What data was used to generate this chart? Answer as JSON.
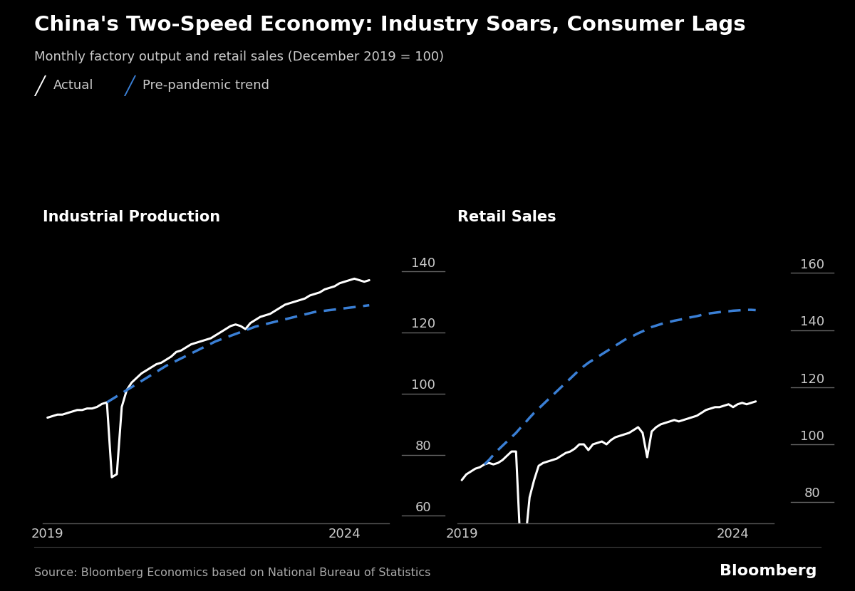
{
  "title": "China's Two-Speed Economy: Industry Soars, Consumer Lags",
  "subtitle": "Monthly factory output and retail sales (December 2019 = 100)",
  "source": "Source: Bloomberg Economics based on National Bureau of Statistics",
  "background_color": "#000000",
  "text_color": "#ffffff",
  "tick_label_color": "#cccccc",
  "actual_color": "#ffffff",
  "trend_color": "#3a7fd5",
  "left_panel_title": "Industrial Production",
  "right_panel_title": "Retail Sales",
  "ip_ylim": [
    58,
    147
  ],
  "ip_yticks": [
    60,
    80,
    100,
    120,
    140
  ],
  "rs_ylim": [
    73,
    168
  ],
  "rs_yticks": [
    80,
    100,
    120,
    140,
    160
  ],
  "xlim_start": 2018.92,
  "xlim_end": 2024.75,
  "xticks": [
    2019,
    2024
  ],
  "ip_actual_x": [
    2019.0,
    2019.083,
    2019.167,
    2019.25,
    2019.333,
    2019.417,
    2019.5,
    2019.583,
    2019.667,
    2019.75,
    2019.833,
    2019.917,
    2020.0,
    2020.083,
    2020.167,
    2020.25,
    2020.333,
    2020.417,
    2020.5,
    2020.583,
    2020.667,
    2020.75,
    2020.833,
    2020.917,
    2021.0,
    2021.083,
    2021.167,
    2021.25,
    2021.333,
    2021.417,
    2021.5,
    2021.583,
    2021.667,
    2021.75,
    2021.833,
    2021.917,
    2022.0,
    2022.083,
    2022.167,
    2022.25,
    2022.333,
    2022.417,
    2022.5,
    2022.583,
    2022.667,
    2022.75,
    2022.833,
    2022.917,
    2023.0,
    2023.083,
    2023.167,
    2023.25,
    2023.333,
    2023.417,
    2023.5,
    2023.583,
    2023.667,
    2023.75,
    2023.833,
    2023.917,
    2024.0,
    2024.083,
    2024.167,
    2024.25,
    2024.333,
    2024.417
  ],
  "ip_actual_y": [
    92.5,
    93.0,
    93.5,
    93.5,
    94.0,
    94.5,
    95.0,
    95.0,
    95.5,
    95.5,
    96.0,
    97.0,
    97.5,
    73.0,
    74.0,
    96.0,
    101.5,
    104.0,
    105.5,
    107.0,
    108.0,
    109.0,
    110.0,
    110.5,
    111.5,
    112.5,
    114.0,
    114.5,
    115.5,
    116.5,
    117.0,
    117.5,
    118.0,
    118.5,
    119.5,
    120.5,
    121.5,
    122.5,
    123.0,
    122.5,
    121.5,
    123.5,
    124.5,
    125.5,
    126.0,
    126.5,
    127.5,
    128.5,
    129.5,
    130.0,
    130.5,
    131.0,
    131.5,
    132.5,
    133.0,
    133.5,
    134.5,
    135.0,
    135.5,
    136.5,
    137.0,
    137.5,
    138.0,
    137.5,
    137.0,
    137.5
  ],
  "ip_trend_x": [
    2020.0,
    2020.083,
    2020.167,
    2020.25,
    2020.333,
    2020.417,
    2020.5,
    2020.583,
    2020.667,
    2020.75,
    2020.833,
    2020.917,
    2021.0,
    2021.083,
    2021.167,
    2021.25,
    2021.333,
    2021.417,
    2021.5,
    2021.583,
    2021.667,
    2021.75,
    2021.833,
    2021.917,
    2022.0,
    2022.083,
    2022.167,
    2022.25,
    2022.333,
    2022.417,
    2022.5,
    2022.583,
    2022.667,
    2022.75,
    2022.833,
    2022.917,
    2023.0,
    2023.083,
    2023.167,
    2023.25,
    2023.333,
    2023.417,
    2023.5,
    2023.583,
    2023.667,
    2023.75,
    2023.833,
    2023.917,
    2024.0,
    2024.083,
    2024.167,
    2024.25,
    2024.333,
    2024.417
  ],
  "ip_trend_y": [
    97.5,
    98.5,
    99.5,
    100.5,
    101.5,
    102.5,
    103.5,
    104.5,
    105.5,
    106.5,
    107.5,
    108.5,
    109.5,
    110.3,
    111.1,
    111.9,
    112.7,
    113.5,
    114.3,
    115.1,
    115.9,
    116.7,
    117.5,
    118.1,
    118.7,
    119.3,
    119.9,
    120.5,
    121.1,
    121.7,
    122.3,
    122.7,
    123.1,
    123.5,
    123.9,
    124.3,
    124.7,
    125.1,
    125.5,
    125.9,
    126.3,
    126.7,
    127.1,
    127.3,
    127.5,
    127.7,
    127.9,
    128.1,
    128.3,
    128.5,
    128.7,
    128.9,
    129.1,
    129.3
  ],
  "rs_actual_x": [
    2019.0,
    2019.083,
    2019.167,
    2019.25,
    2019.333,
    2019.417,
    2019.5,
    2019.583,
    2019.667,
    2019.75,
    2019.833,
    2019.917,
    2020.0,
    2020.083,
    2020.167,
    2020.25,
    2020.333,
    2020.417,
    2020.5,
    2020.583,
    2020.667,
    2020.75,
    2020.833,
    2020.917,
    2021.0,
    2021.083,
    2021.167,
    2021.25,
    2021.333,
    2021.417,
    2021.5,
    2021.583,
    2021.667,
    2021.75,
    2021.833,
    2021.917,
    2022.0,
    2022.083,
    2022.167,
    2022.25,
    2022.333,
    2022.417,
    2022.5,
    2022.583,
    2022.667,
    2022.75,
    2022.833,
    2022.917,
    2023.0,
    2023.083,
    2023.167,
    2023.25,
    2023.333,
    2023.417,
    2023.5,
    2023.583,
    2023.667,
    2023.75,
    2023.833,
    2023.917,
    2024.0,
    2024.083,
    2024.167,
    2024.25,
    2024.333,
    2024.417
  ],
  "rs_actual_y": [
    88.0,
    90.0,
    91.0,
    92.0,
    92.5,
    93.5,
    94.0,
    93.5,
    94.0,
    95.0,
    96.5,
    98.0,
    98.0,
    64.0,
    66.0,
    82.0,
    88.0,
    93.0,
    94.0,
    94.5,
    95.0,
    95.5,
    96.5,
    97.5,
    98.0,
    99.0,
    100.5,
    100.5,
    98.5,
    100.5,
    101.0,
    101.5,
    100.5,
    102.0,
    103.0,
    103.5,
    104.0,
    104.5,
    105.5,
    106.5,
    104.5,
    96.0,
    105.0,
    106.5,
    107.5,
    108.0,
    108.5,
    109.0,
    108.5,
    109.0,
    109.5,
    110.0,
    110.5,
    111.5,
    112.5,
    113.0,
    113.5,
    113.5,
    114.0,
    114.5,
    113.5,
    114.5,
    115.0,
    114.5,
    115.0,
    115.5
  ],
  "rs_trend_x": [
    2019.417,
    2019.5,
    2019.583,
    2019.667,
    2019.75,
    2019.833,
    2019.917,
    2020.0,
    2020.083,
    2020.167,
    2020.25,
    2020.333,
    2020.417,
    2020.5,
    2020.583,
    2020.667,
    2020.75,
    2020.833,
    2020.917,
    2021.0,
    2021.083,
    2021.167,
    2021.25,
    2021.333,
    2021.417,
    2021.5,
    2021.583,
    2021.667,
    2021.75,
    2021.833,
    2021.917,
    2022.0,
    2022.083,
    2022.167,
    2022.25,
    2022.333,
    2022.417,
    2022.5,
    2022.583,
    2022.667,
    2022.75,
    2022.833,
    2022.917,
    2023.0,
    2023.083,
    2023.167,
    2023.25,
    2023.333,
    2023.417,
    2023.5,
    2023.583,
    2023.667,
    2023.75,
    2023.833,
    2023.917,
    2024.0,
    2024.083,
    2024.167,
    2024.25,
    2024.333,
    2024.417
  ],
  "rs_trend_y": [
    93.5,
    95.0,
    96.8,
    98.5,
    100.0,
    101.5,
    103.0,
    104.5,
    106.3,
    108.0,
    109.8,
    111.5,
    113.0,
    114.5,
    116.0,
    117.5,
    119.0,
    120.5,
    122.0,
    123.5,
    125.0,
    126.5,
    127.8,
    129.0,
    130.0,
    131.0,
    132.0,
    133.0,
    134.0,
    135.0,
    136.0,
    137.0,
    137.8,
    138.5,
    139.3,
    140.0,
    140.8,
    141.5,
    142.0,
    142.5,
    143.0,
    143.3,
    143.7,
    144.0,
    144.3,
    144.7,
    145.0,
    145.3,
    145.7,
    146.0,
    146.3,
    146.5,
    146.7,
    146.9,
    147.0,
    147.2,
    147.3,
    147.4,
    147.5,
    147.5,
    147.4
  ]
}
